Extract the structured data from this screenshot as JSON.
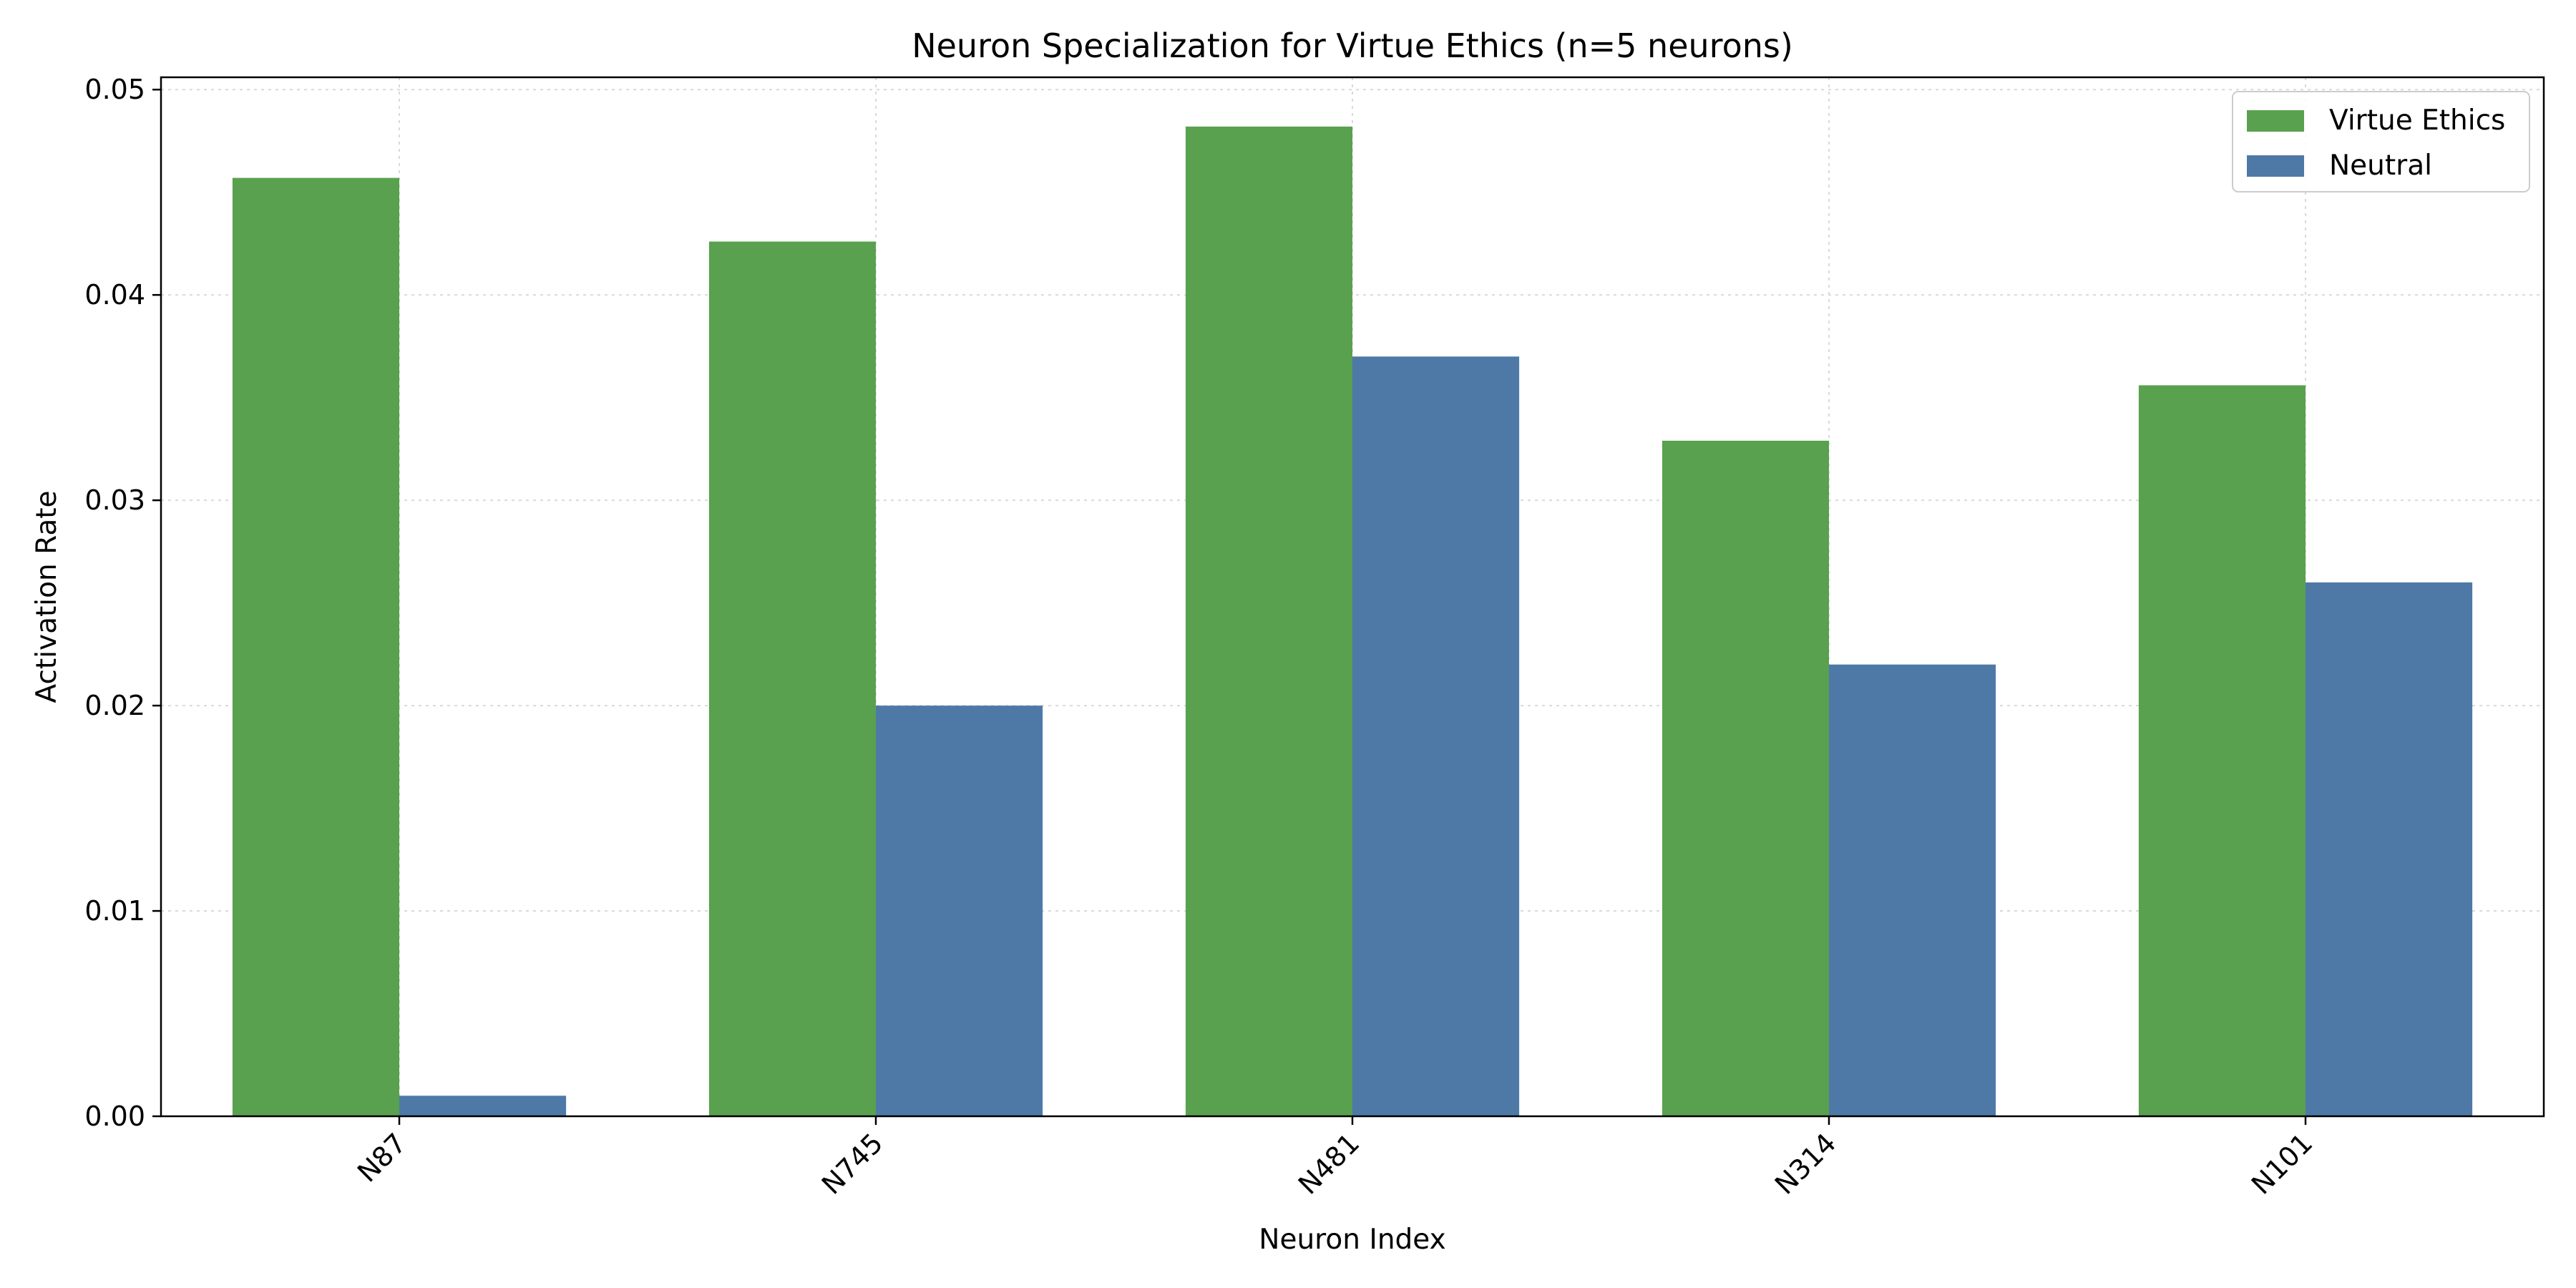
{
  "chart_data": {
    "type": "bar",
    "title": "Neuron Specialization for Virtue Ethics (n=5 neurons)",
    "xlabel": "Neuron Index",
    "ylabel": "Activation Rate",
    "categories": [
      "N87",
      "N745",
      "N481",
      "N314",
      "N101"
    ],
    "series": [
      {
        "name": "Virtue Ethics",
        "color": "#59a14f",
        "values": [
          0.0457,
          0.0426,
          0.0482,
          0.0329,
          0.0356
        ]
      },
      {
        "name": "Neutral",
        "color": "#4e79a7",
        "values": [
          0.001,
          0.02,
          0.037,
          0.022,
          0.026
        ]
      }
    ],
    "ylim": [
      0,
      0.0506
    ],
    "yticks": [
      0.0,
      0.01,
      0.02,
      0.03,
      0.04,
      0.05
    ],
    "ytick_labels": [
      "0.00",
      "0.01",
      "0.02",
      "0.03",
      "0.04",
      "0.05"
    ],
    "grid": true,
    "legend": "top-right"
  }
}
